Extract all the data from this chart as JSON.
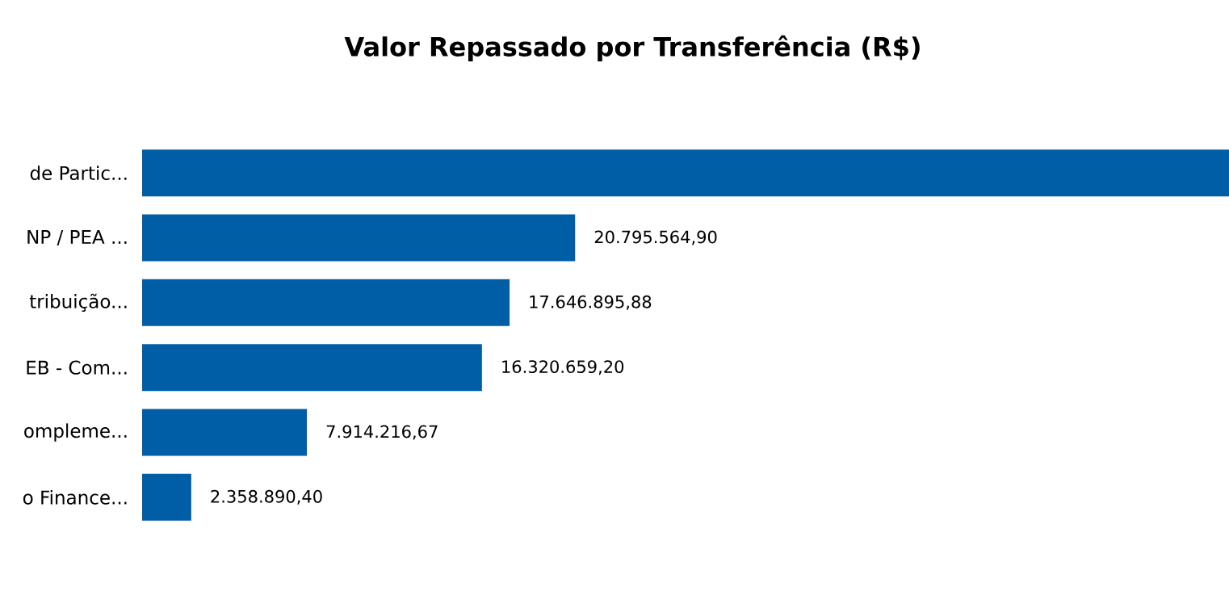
{
  "chart_data": {
    "type": "bar",
    "orientation": "horizontal",
    "title": "Valor Repassado por Transferência (R$)",
    "categories": [
      "de Partic...",
      "NP / PEA ...",
      "tribuição...",
      "EB - Com...",
      "ompleme...",
      "o Finance..."
    ],
    "values": [
      52200000,
      20795564.9,
      17646895.88,
      16320659.2,
      7914216.67,
      2358890.4
    ],
    "value_labels": [
      null,
      "20.795.564,90",
      "17.646.895,88",
      "16.320.659,20",
      "7.914.216,67",
      "2.358.890,40"
    ],
    "color": "#005ea6",
    "xlim": [
      0,
      52200000
    ]
  }
}
